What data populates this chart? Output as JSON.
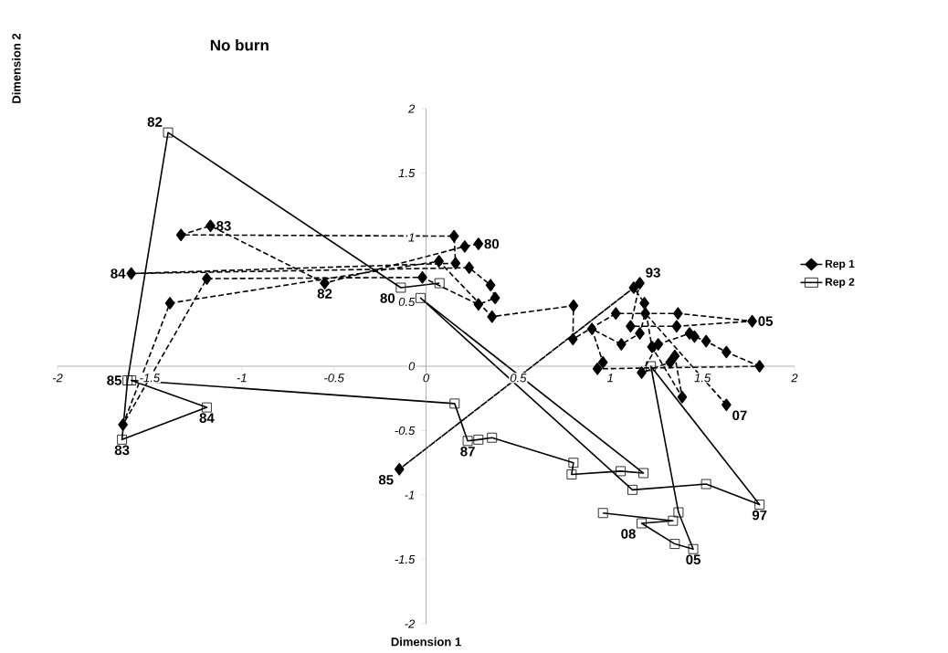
{
  "chart_data": {
    "type": "line",
    "title": "No burn",
    "xlabel": "Dimension 1",
    "ylabel": "Dimension 2",
    "xlim": [
      -2,
      2
    ],
    "ylim": [
      -2,
      2
    ],
    "xticks": [
      -2,
      -1.5,
      -1,
      -0.5,
      0,
      0.5,
      1,
      1.5,
      2
    ],
    "yticks": [
      -2,
      -1.5,
      -1,
      -0.5,
      0,
      0.5,
      1,
      1.5,
      2
    ],
    "grid": false,
    "legend": "right",
    "series": [
      {
        "name": "Rep 1",
        "color": "#000000",
        "marker": "diamond",
        "line_style": "dashed",
        "x": [
          0.284,
          0.21,
          -0.55,
          -1.17,
          -1.33,
          0.152,
          0.16,
          -1.6,
          0.234,
          0.35,
          0.375,
          0.284,
          -0.02,
          -1.19,
          -1.645,
          -1.39,
          0.07,
          0.358,
          0.8,
          0.797,
          1.03,
          1.367,
          1.77,
          1.36,
          1.11,
          1.16,
          -0.145,
          1.127,
          1.185,
          1.226,
          1.39,
          1.35,
          1.325,
          1.17,
          1.26,
          1.43,
          1.457,
          1.52,
          1.63,
          1.81,
          0.93,
          0.96,
          0.9,
          1.06,
          1.16,
          1.19,
          1.63
        ],
        "values": [
          0.95,
          0.93,
          0.645,
          1.09,
          1.02,
          1.01,
          0.8,
          0.72,
          0.765,
          0.63,
          0.53,
          0.48,
          0.69,
          0.68,
          -0.454,
          0.49,
          0.815,
          0.385,
          0.47,
          0.21,
          0.41,
          0.41,
          0.35,
          0.31,
          0.31,
          0.645,
          -0.8,
          0.61,
          0.49,
          0.15,
          -0.24,
          0.08,
          0.03,
          -0.05,
          0.17,
          0.255,
          0.23,
          0.195,
          0.11,
          0.0,
          -0.02,
          0.03,
          0.29,
          0.17,
          0.255,
          0.41,
          -0.3
        ]
      },
      {
        "name": "Rep 2",
        "color": "#000000",
        "marker": "square",
        "line_style": "solid",
        "x": [
          0.073,
          -0.137,
          -1.4,
          -1.62,
          -1.65,
          -1.19,
          -1.6,
          0.155,
          0.226,
          0.284,
          0.358,
          0.8,
          0.79,
          1.056,
          1.18,
          -0.03,
          1.12,
          1.52,
          1.81,
          1.22,
          1.37,
          1.45,
          1.35,
          1.17,
          1.34,
          0.96
        ],
        "values": [
          0.645,
          0.61,
          1.815,
          -0.11,
          -0.57,
          -0.32,
          -0.11,
          -0.29,
          -0.58,
          -0.57,
          -0.555,
          -0.75,
          -0.84,
          -0.815,
          -0.83,
          0.53,
          -0.96,
          -0.915,
          -1.075,
          0.0,
          -1.135,
          -1.42,
          -1.38,
          -1.22,
          -1.2,
          -1.14
        ]
      }
    ],
    "annotations": [
      {
        "text": "80",
        "x": 0.284,
        "y": 0.95
      },
      {
        "text": "82",
        "x": -0.55,
        "y": 0.645
      },
      {
        "text": "83",
        "x": -1.17,
        "y": 1.09
      },
      {
        "text": "84",
        "x": -1.6,
        "y": 0.72
      },
      {
        "text": "85",
        "x": -0.145,
        "y": -0.8
      },
      {
        "text": "93",
        "x": 1.16,
        "y": 0.645
      },
      {
        "text": "05",
        "x": 1.77,
        "y": 0.35
      },
      {
        "text": "07",
        "x": 1.63,
        "y": -0.3
      },
      {
        "text": "82",
        "x": -1.4,
        "y": 1.815
      },
      {
        "text": "83",
        "x": -1.65,
        "y": -0.57
      },
      {
        "text": "84",
        "x": -1.19,
        "y": -0.32
      },
      {
        "text": "85",
        "x": -1.62,
        "y": -0.11
      },
      {
        "text": "87",
        "x": 0.226,
        "y": -0.58
      },
      {
        "text": "97",
        "x": 1.81,
        "y": -1.075
      },
      {
        "text": "05",
        "x": 1.45,
        "y": -1.42
      },
      {
        "text": "08",
        "x": 1.17,
        "y": -1.22
      },
      {
        "text": "80",
        "x": -0.137,
        "y": 0.61
      }
    ]
  }
}
